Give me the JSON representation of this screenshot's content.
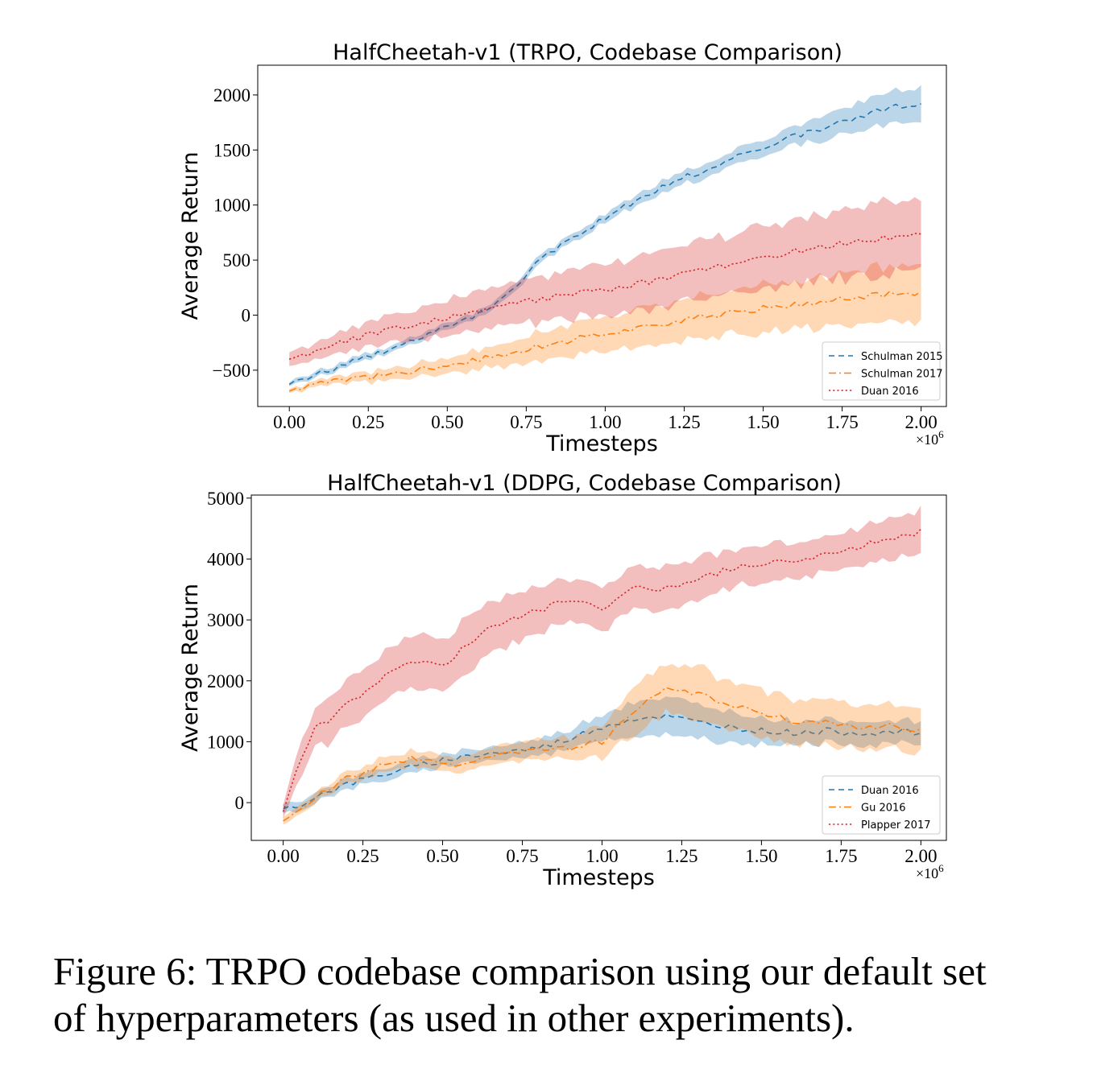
{
  "colors": {
    "blue": "#1f77b4",
    "orange": "#ff7f0e",
    "red": "#d62728"
  },
  "chart_data": [
    {
      "type": "line",
      "title": "HalfCheetah-v1 (TRPO, Codebase Comparison)",
      "xlabel": "Timesteps",
      "ylabel": "Average Return",
      "x_multiplier": "×10^6",
      "xlim": [
        -0.1,
        2.08
      ],
      "ylim": [
        -830,
        2270
      ],
      "xticks": [
        0.0,
        0.25,
        0.5,
        0.75,
        1.0,
        1.25,
        1.5,
        1.75,
        2.0
      ],
      "xtick_labels": [
        "0.00",
        "0.25",
        "0.50",
        "0.75",
        "1.00",
        "1.25",
        "1.50",
        "1.75",
        "2.00"
      ],
      "yticks": [
        -500,
        0,
        500,
        1000,
        1500,
        2000
      ],
      "ytick_labels": [
        "−500",
        "0",
        "500",
        "1000",
        "1500",
        "2000"
      ],
      "grid": false,
      "legend_position": "bottom-right",
      "series": [
        {
          "name": "Schulman 2015",
          "color": "#1f77b4",
          "style": "dashed",
          "x": [
            0.0,
            0.1,
            0.2,
            0.3,
            0.4,
            0.5,
            0.6,
            0.7,
            0.8,
            0.9,
            1.0,
            1.1,
            1.2,
            1.3,
            1.4,
            1.5,
            1.6,
            1.7,
            1.8,
            1.9,
            2.0
          ],
          "y": [
            -630,
            -520,
            -420,
            -320,
            -220,
            -100,
            20,
            200,
            520,
            720,
            880,
            1040,
            1200,
            1300,
            1430,
            1520,
            1620,
            1710,
            1800,
            1880,
            1930
          ],
          "band": [
            20,
            25,
            30,
            30,
            30,
            30,
            30,
            35,
            40,
            40,
            40,
            50,
            55,
            60,
            65,
            75,
            90,
            110,
            130,
            150,
            160
          ]
        },
        {
          "name": "Schulman 2017",
          "color": "#ff7f0e",
          "style": "dashdot",
          "x": [
            0.0,
            0.1,
            0.2,
            0.3,
            0.4,
            0.5,
            0.6,
            0.7,
            0.8,
            0.9,
            1.0,
            1.1,
            1.2,
            1.3,
            1.4,
            1.5,
            1.6,
            1.7,
            1.8,
            1.9,
            2.0
          ],
          "y": [
            -690,
            -610,
            -580,
            -550,
            -500,
            -460,
            -400,
            -340,
            -280,
            -220,
            -170,
            -120,
            -70,
            -20,
            20,
            60,
            90,
            130,
            160,
            190,
            210
          ],
          "band": [
            20,
            30,
            40,
            50,
            60,
            70,
            90,
            110,
            130,
            150,
            160,
            170,
            180,
            190,
            200,
            210,
            220,
            230,
            240,
            250,
            260
          ]
        },
        {
          "name": "Duan 2016",
          "color": "#d62728",
          "style": "dotted",
          "x": [
            0.0,
            0.1,
            0.2,
            0.3,
            0.4,
            0.5,
            0.6,
            0.7,
            0.8,
            0.9,
            1.0,
            1.1,
            1.2,
            1.3,
            1.4,
            1.5,
            1.6,
            1.7,
            1.8,
            1.9,
            2.0
          ],
          "y": [
            -400,
            -310,
            -220,
            -150,
            -90,
            -30,
            40,
            100,
            150,
            190,
            230,
            280,
            340,
            400,
            460,
            520,
            580,
            620,
            680,
            700,
            720
          ],
          "band": [
            60,
            80,
            100,
            120,
            140,
            160,
            180,
            200,
            210,
            220,
            230,
            240,
            250,
            260,
            270,
            280,
            290,
            300,
            320,
            330,
            340
          ]
        }
      ]
    },
    {
      "type": "line",
      "title": "HalfCheetah-v1 (DDPG, Codebase Comparison)",
      "xlabel": "Timesteps",
      "ylabel": "Average Return",
      "x_multiplier": "×10^6",
      "xlim": [
        -0.1,
        2.08
      ],
      "ylim": [
        -620,
        5050
      ],
      "xticks": [
        0.0,
        0.25,
        0.5,
        0.75,
        1.0,
        1.25,
        1.5,
        1.75,
        2.0
      ],
      "xtick_labels": [
        "0.00",
        "0.25",
        "0.50",
        "0.75",
        "1.00",
        "1.25",
        "1.50",
        "1.75",
        "2.00"
      ],
      "yticks": [
        0,
        1000,
        2000,
        3000,
        4000,
        5000
      ],
      "ytick_labels": [
        "0",
        "1000",
        "2000",
        "3000",
        "4000",
        "5000"
      ],
      "grid": false,
      "legend_position": "bottom-right",
      "series": [
        {
          "name": "Duan 2016",
          "color": "#1f77b4",
          "style": "dashed",
          "x": [
            0.0,
            0.05,
            0.1,
            0.2,
            0.3,
            0.4,
            0.5,
            0.6,
            0.7,
            0.8,
            0.9,
            1.0,
            1.1,
            1.2,
            1.3,
            1.4,
            1.5,
            1.6,
            1.7,
            1.8,
            1.9,
            2.0
          ],
          "y": [
            -100,
            -50,
            100,
            300,
            450,
            570,
            700,
            780,
            830,
            900,
            1050,
            1250,
            1380,
            1420,
            1320,
            1250,
            1180,
            1150,
            1180,
            1150,
            1150,
            1150
          ],
          "band": [
            80,
            80,
            80,
            90,
            100,
            100,
            110,
            110,
            120,
            130,
            160,
            220,
            280,
            300,
            280,
            250,
            220,
            200,
            200,
            190,
            190,
            190
          ]
        },
        {
          "name": "Gu 2016",
          "color": "#ff7f0e",
          "style": "dashdot",
          "x": [
            0.0,
            0.05,
            0.1,
            0.2,
            0.3,
            0.4,
            0.5,
            0.6,
            0.7,
            0.8,
            0.9,
            1.0,
            1.1,
            1.2,
            1.3,
            1.4,
            1.5,
            1.6,
            1.7,
            1.8,
            1.9,
            2.0
          ],
          "y": [
            -300,
            -150,
            100,
            400,
            600,
            720,
            620,
            660,
            800,
            850,
            900,
            1000,
            1500,
            1850,
            1800,
            1600,
            1450,
            1350,
            1300,
            1250,
            1250,
            1200
          ],
          "band": [
            60,
            70,
            80,
            100,
            110,
            120,
            130,
            140,
            150,
            160,
            180,
            250,
            380,
            400,
            420,
            400,
            380,
            360,
            360,
            360,
            360,
            360
          ]
        },
        {
          "name": "Plapper 2017",
          "color": "#d62728",
          "style": "dotted",
          "x": [
            0.0,
            0.05,
            0.1,
            0.2,
            0.3,
            0.4,
            0.5,
            0.6,
            0.7,
            0.8,
            0.9,
            1.0,
            1.1,
            1.2,
            1.3,
            1.4,
            1.5,
            1.6,
            1.7,
            1.8,
            1.9,
            2.0
          ],
          "y": [
            -150,
            700,
            1200,
            1600,
            2000,
            2350,
            2250,
            2700,
            3000,
            3150,
            3350,
            3200,
            3550,
            3500,
            3650,
            3850,
            3900,
            4000,
            4050,
            4200,
            4350,
            4450
          ],
          "band": [
            100,
            300,
            350,
            380,
            400,
            420,
            440,
            440,
            420,
            380,
            360,
            350,
            350,
            360,
            340,
            320,
            300,
            300,
            300,
            320,
            330,
            340
          ]
        }
      ]
    }
  ],
  "caption": {
    "line1": "Figure 6: TRPO codebase comparison using our default set",
    "line2": "of hyperparameters (as used in other experiments)."
  }
}
